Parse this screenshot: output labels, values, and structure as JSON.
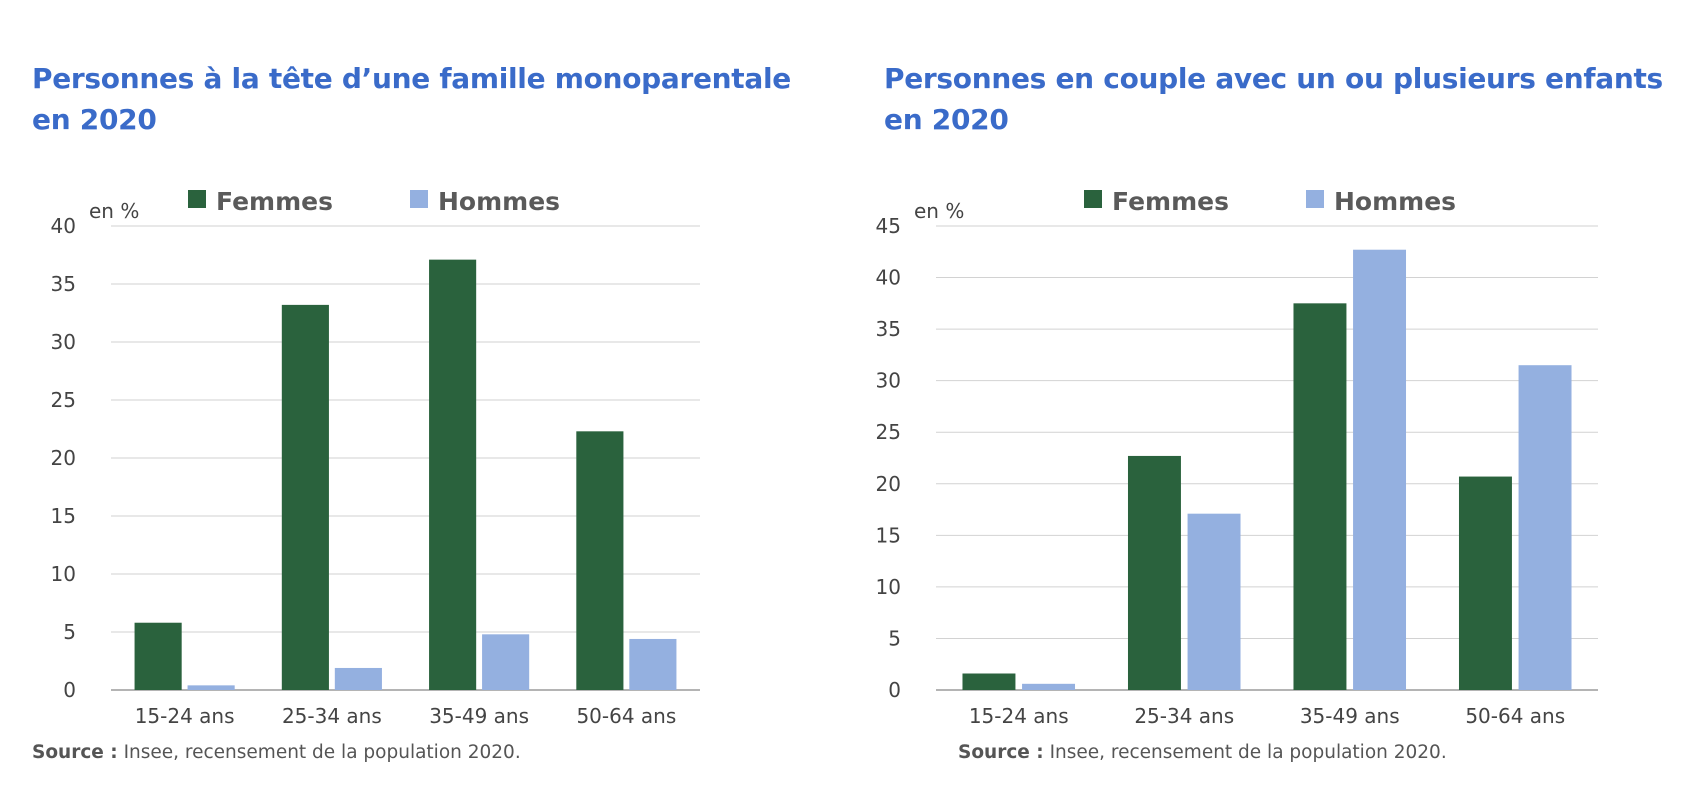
{
  "colors": {
    "title": "#3a6bc9",
    "femmes": "#2a623d",
    "hommes": "#94b0e0",
    "grid": "#d2d2d2",
    "axis": "#888888",
    "text": "#444444",
    "legend_text": "#5a5a5a"
  },
  "chart_data": [
    {
      "type": "bar",
      "title": "Personnes à la tête d’une famille monoparentale en 2020",
      "title_lines": [
        "Personnes à la tête d’une famille monoparentale",
        "en 2020"
      ],
      "unit_label": "en %",
      "categories": [
        "15-24 ans",
        "25-34 ans",
        "35-49 ans",
        "50-64 ans"
      ],
      "series": [
        {
          "name": "Femmes",
          "values": [
            5.8,
            33.2,
            37.1,
            22.3
          ]
        },
        {
          "name": "Hommes",
          "values": [
            0.4,
            1.9,
            4.8,
            4.4
          ]
        }
      ],
      "ylim": [
        0,
        40
      ],
      "yticks": [
        0,
        5,
        10,
        15,
        20,
        25,
        30,
        35,
        40
      ],
      "grid": true,
      "legend": "top",
      "source_label": "Source :",
      "source_text": " Insee, recensement de la population 2020."
    },
    {
      "type": "bar",
      "title": "Personnes en couple avec un ou plusieurs enfants en 2020",
      "title_lines": [
        "Personnes en couple avec un ou plusieurs enfants",
        "en 2020"
      ],
      "unit_label": "en %",
      "categories": [
        "15-24 ans",
        "25-34 ans",
        "35-49 ans",
        "50-64 ans"
      ],
      "series": [
        {
          "name": "Femmes",
          "values": [
            1.6,
            22.7,
            37.5,
            20.7
          ]
        },
        {
          "name": "Hommes",
          "values": [
            0.6,
            17.1,
            42.7,
            31.5
          ]
        }
      ],
      "ylim": [
        0,
        45
      ],
      "yticks": [
        0,
        5,
        10,
        15,
        20,
        25,
        30,
        35,
        40,
        45
      ],
      "grid": true,
      "legend": "top",
      "source_label": "Source :",
      "source_text": " Insee, recensement de la population 2020."
    }
  ]
}
